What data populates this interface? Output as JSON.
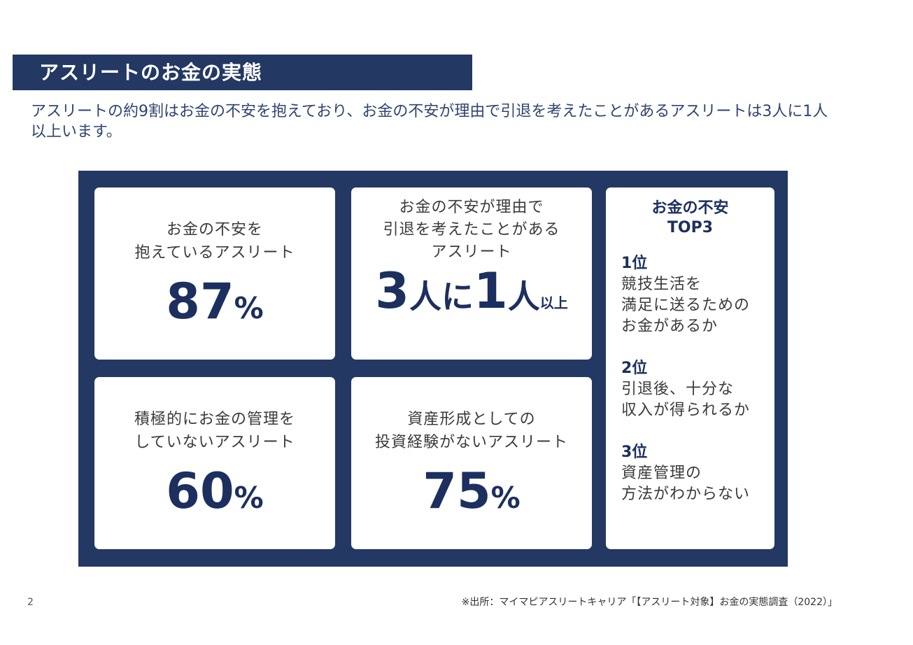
{
  "header": {
    "title": "アスリートのお金の実態",
    "subtitle": "アスリートの約9割はお金の不安を抱えており、お金の不安が理由で引退を考えたことがあるアスリートは3人に1人以上います。"
  },
  "cards": {
    "c1": {
      "label_lines": [
        "お金の不安を",
        "抱えているアスリート"
      ],
      "value": "87",
      "unit": "%"
    },
    "c2": {
      "label_lines": [
        "お金の不安が理由で",
        "引退を考えたことがある",
        "アスリート"
      ],
      "num1": "3",
      "kanji1": "人に",
      "num2": "1",
      "kanji2": "人",
      "suffix": "以上"
    },
    "c3": {
      "label_lines": [
        "積極的にお金の管理を",
        "していないアスリート"
      ],
      "value": "60",
      "unit": "%"
    },
    "c4": {
      "label_lines": [
        "資産形成としての",
        "投資経験がないアスリート"
      ],
      "value": "75",
      "unit": "%"
    }
  },
  "top3": {
    "title_lines": [
      "お金の不安",
      "TOP3"
    ],
    "ranks": [
      {
        "rank": "1位",
        "lines": [
          "競技生活を",
          "満足に送るための",
          "お金があるか"
        ]
      },
      {
        "rank": "2位",
        "lines": [
          "引退後、十分な",
          "収入が得られるか"
        ]
      },
      {
        "rank": "3位",
        "lines": [
          "資産管理の",
          "方法がわからない"
        ]
      }
    ]
  },
  "footer": {
    "page_number": "2",
    "source": "※出所：マイマピアスリートキャリア「【アスリート対象】お金の実態調査（2022）」"
  }
}
